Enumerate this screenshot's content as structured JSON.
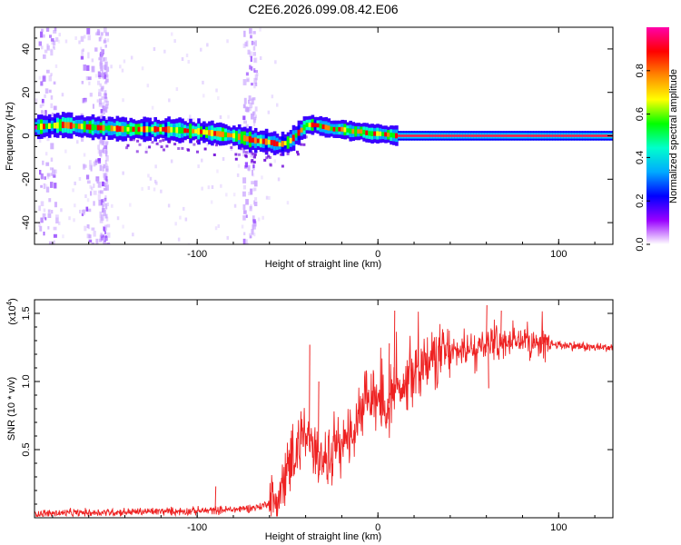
{
  "title": "C2E6.2026.099.08.42.E06",
  "chart_data": [
    {
      "type": "heatmap",
      "xlabel": "Height of straight line (km)",
      "ylabel": "Frequency (Hz)",
      "xlim": [
        -190,
        130
      ],
      "ylim": [
        -50,
        50
      ],
      "xticks": [
        -100,
        0,
        100
      ],
      "yticks": [
        -40,
        -20,
        0,
        20,
        40
      ],
      "ridge": {
        "x": [
          -190,
          -175,
          -160,
          -140,
          -120,
          -100,
          -90,
          -80,
          -70,
          -60,
          -55,
          -50,
          -45,
          -40,
          -35,
          -30,
          -25,
          -20,
          -15,
          -10,
          -5,
          0,
          10,
          20,
          40,
          60,
          80,
          100,
          130
        ],
        "freq_hz": [
          4,
          5,
          4,
          3,
          3,
          2,
          1,
          0,
          -2,
          -3,
          -4,
          -3,
          1,
          5,
          5,
          4,
          3,
          3,
          2,
          2,
          1,
          1,
          0,
          0,
          0,
          0,
          0,
          0,
          0
        ]
      },
      "colorbar": {
        "label": "Normalized spectral amplitude",
        "range": [
          0,
          1
        ],
        "ticks": [
          "0.0",
          "0.2",
          "0.4",
          "0.6",
          "0.8"
        ],
        "colors": [
          "#ffffff",
          "#9900ff",
          "#0000ff",
          "#00aaff",
          "#00ffcc",
          "#00ff00",
          "#ffff00",
          "#ff8800",
          "#ff0000",
          "#ff00aa"
        ]
      }
    },
    {
      "type": "line",
      "xlabel": "Height of straight line (km)",
      "ylabel": "SNR (10 * v/v)",
      "scale_label": "(x10",
      "scale_exp": "4",
      "scale_close": ")",
      "xlim": [
        -190,
        130
      ],
      "ylim": [
        0,
        1.6
      ],
      "xticks": [
        -100,
        0,
        100
      ],
      "yticks": [
        0.5,
        1.0,
        1.5
      ],
      "ytick_labels": [
        "0.5",
        "1.0",
        "1.5"
      ],
      "color": "#ee2222",
      "envelope": {
        "x": [
          -190,
          -150,
          -100,
          -80,
          -65,
          -55,
          -50,
          -45,
          -40,
          -35,
          -30,
          -25,
          -20,
          -15,
          -10,
          -5,
          0,
          5,
          10,
          15,
          20,
          30,
          40,
          50,
          60,
          70,
          80,
          90,
          100,
          110,
          120,
          130
        ],
        "y": [
          0.03,
          0.04,
          0.05,
          0.06,
          0.08,
          0.15,
          0.35,
          0.5,
          0.6,
          0.5,
          0.45,
          0.45,
          0.55,
          0.6,
          0.75,
          0.85,
          0.9,
          0.8,
          1.0,
          0.95,
          1.1,
          1.18,
          1.2,
          1.25,
          1.28,
          1.3,
          1.3,
          1.28,
          1.27,
          1.26,
          1.25,
          1.25
        ]
      },
      "spikes": [
        {
          "x": -38,
          "y": 1.27
        },
        {
          "x": -33,
          "y": 1.0
        },
        {
          "x": 9,
          "y": 1.52
        },
        {
          "x": 6,
          "y": 1.28
        },
        {
          "x": 60,
          "y": 1.56
        },
        {
          "x": 68,
          "y": 1.52
        },
        {
          "x": -90,
          "y": 0.23
        },
        {
          "x": 61,
          "y": 0.95
        }
      ]
    }
  ]
}
